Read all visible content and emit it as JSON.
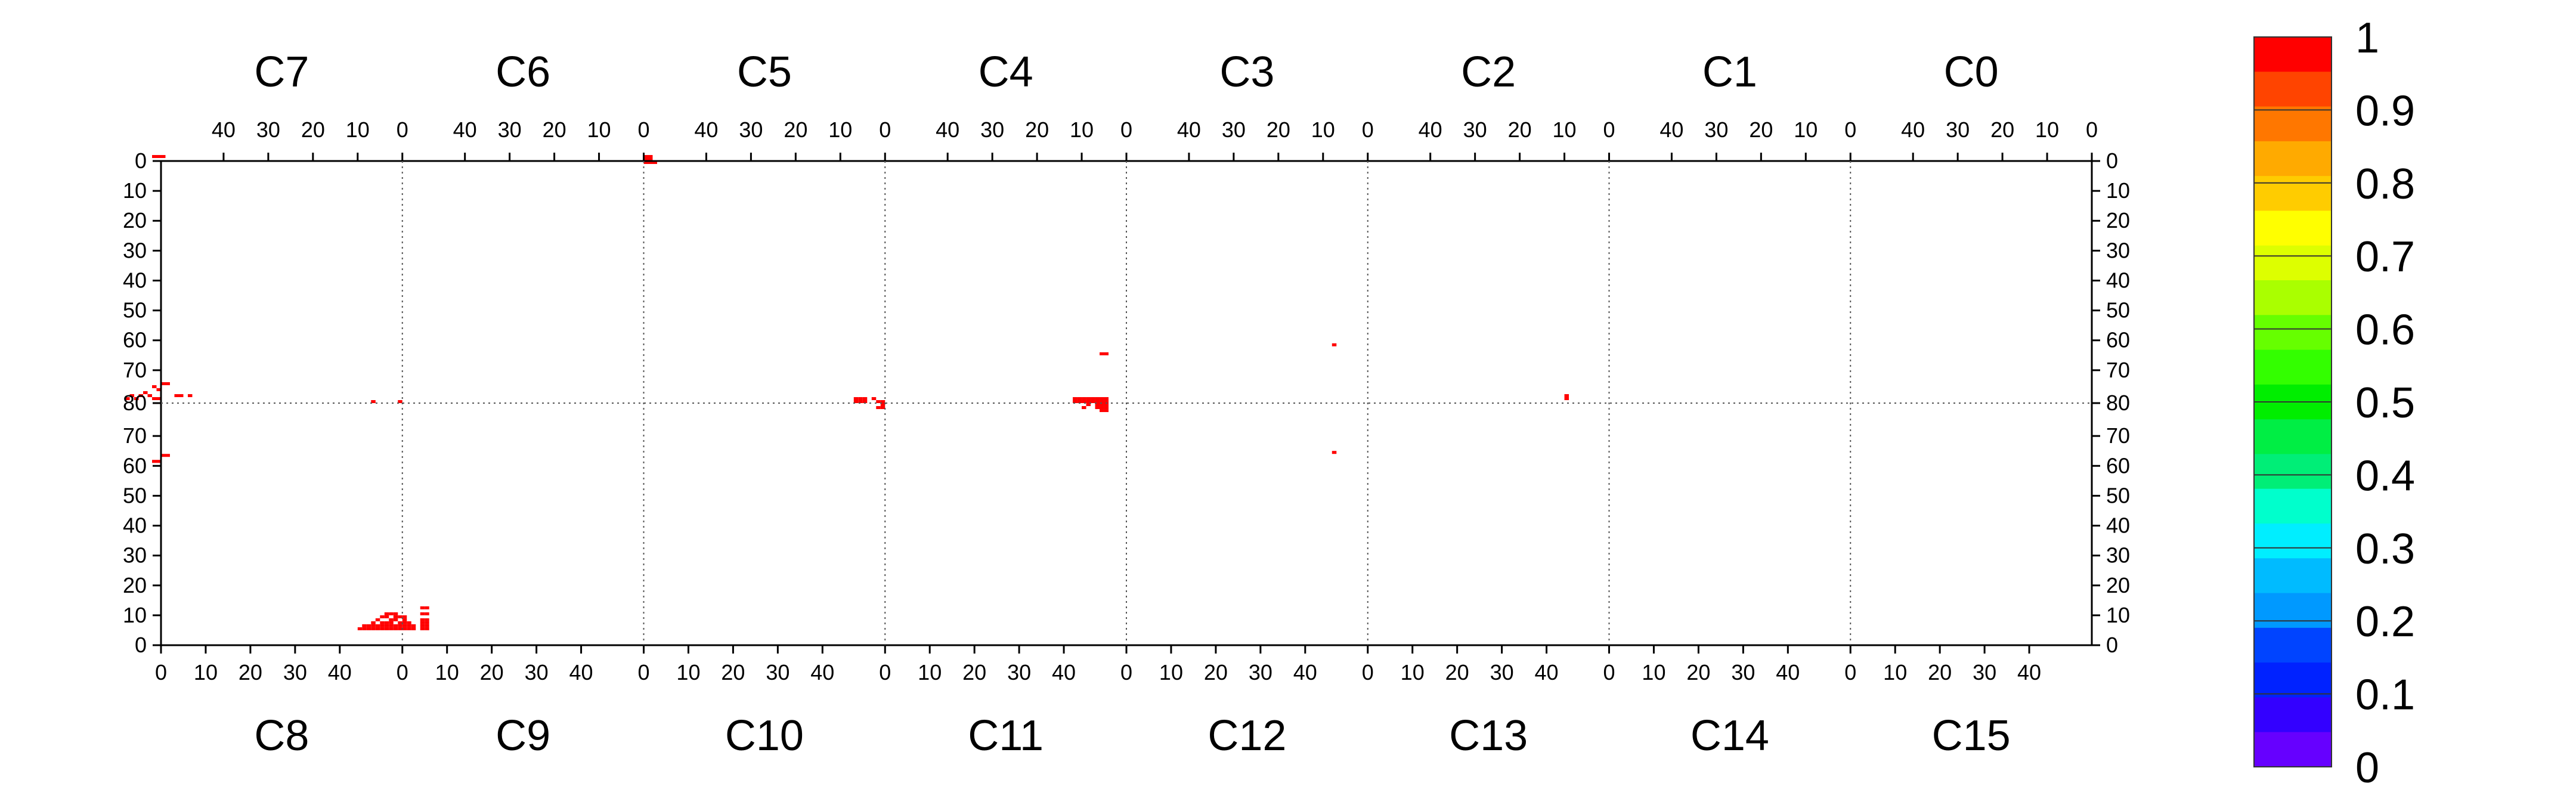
{
  "chart_data": {
    "type": "heatmap",
    "top_panels": [
      "C7",
      "C6",
      "C5",
      "C4",
      "C3",
      "C2",
      "C1",
      "C0"
    ],
    "bottom_panels": [
      "C8",
      "C9",
      "C10",
      "C11",
      "C12",
      "C13",
      "C14",
      "C15"
    ],
    "top_x_ticks": [
      "40",
      "30",
      "20",
      "10",
      "0"
    ],
    "bottom_x_ticks": [
      "0",
      "10",
      "20",
      "30",
      "40"
    ],
    "y_ticks_top_half": [
      "0",
      "10",
      "20",
      "30",
      "40",
      "50",
      "60",
      "70"
    ],
    "y_tick_center": "80",
    "y_ticks_bottom_half": [
      "70",
      "60",
      "50",
      "40",
      "30",
      "20",
      "10",
      "0"
    ],
    "colorbar": {
      "min": 0,
      "max": 1,
      "tick_labels": [
        "1",
        "0.9",
        "0.8",
        "0.7",
        "0.6",
        "0.5",
        "0.4",
        "0.3",
        "0.2",
        "0.1",
        "0"
      ],
      "colors": [
        "#6600ff",
        "#3300ff",
        "#0022ff",
        "#0044ff",
        "#0099ff",
        "#00bbff",
        "#00eeff",
        "#00ffcc",
        "#00ee77",
        "#00ee44",
        "#00ee00",
        "#33ff00",
        "#66ff00",
        "#aaff00",
        "#ddff00",
        "#ffff00",
        "#ffcc00",
        "#ffaa00",
        "#ff7700",
        "#ff4400",
        "#ff0000"
      ]
    },
    "hits": [
      {
        "cell": [
          -1.5,
          -1.5
        ],
        "value": 1
      },
      {
        "cell": [
          -0.5,
          -1.5
        ],
        "value": 1
      },
      {
        "cell": [
          0.5,
          -1.5
        ],
        "value": 1
      },
      {
        "cell": [
          -1.5,
          75.5
        ],
        "value": 1
      },
      {
        "cell": [
          -0.5,
          76.5
        ],
        "value": 1
      },
      {
        "cell": [
          0.5,
          74.5
        ],
        "value": 1
      },
      {
        "cell": [
          1.5,
          74.5
        ],
        "value": 1
      },
      {
        "cell": [
          -3.5,
          77.5
        ],
        "value": 1
      },
      {
        "cell": [
          -4.5,
          78.5
        ],
        "value": 1
      },
      {
        "cell": [
          -5.5,
          79.5
        ],
        "value": 1
      },
      {
        "cell": [
          -6.5,
          78.5
        ],
        "value": 1
      },
      {
        "cell": [
          -7.5,
          79.5
        ],
        "value": 1
      },
      {
        "cell": [
          -2.5,
          78.5
        ],
        "value": 1
      },
      {
        "cell": [
          -1.5,
          79.5
        ],
        "value": 1
      },
      {
        "cell": [
          -0.5,
          79.5
        ],
        "value": 1
      },
      {
        "cell": [
          3.5,
          78.5
        ],
        "value": 1
      },
      {
        "cell": [
          4.5,
          78.5
        ],
        "value": 1
      },
      {
        "cell": [
          6.5,
          78.5
        ],
        "value": 1
      },
      {
        "cell": [
          -0.5,
          100.5
        ],
        "value": 1
      },
      {
        "cell": [
          -1.5,
          100.5
        ],
        "value": 1
      },
      {
        "cell": [
          0.5,
          98.5
        ],
        "value": 1
      },
      {
        "cell": [
          1.5,
          98.5
        ],
        "value": 1
      },
      {
        "cell": [
          47.5,
          80.5
        ],
        "value": 1
      },
      {
        "cell": [
          53.5,
          80.5
        ],
        "value": 1
      },
      {
        "cell": [
          53.5,
          155.5
        ],
        "value": 1
      },
      {
        "cell": [
          52.5,
          155.5
        ],
        "value": 1
      },
      {
        "cell": [
          52.5,
          153.5
        ],
        "value": 1
      },
      {
        "cell": [
          51.5,
          153.5
        ],
        "value": 1
      },
      {
        "cell": [
          51.5,
          154.5
        ],
        "value": 1
      },
      {
        "cell": [
          50.5,
          154.5
        ],
        "value": 1
      },
      {
        "cell": [
          49.5,
          154.5
        ],
        "value": 1
      },
      {
        "cell": [
          49.5,
          155.5
        ],
        "value": 1
      },
      {
        "cell": [
          48.5,
          155.5
        ],
        "value": 1
      },
      {
        "cell": [
          48.5,
          156.5
        ],
        "value": 1
      },
      {
        "cell": [
          47.5,
          156.5
        ],
        "value": 1
      },
      {
        "cell": [
          49.5,
          152.5
        ],
        "value": 1
      },
      {
        "cell": [
          50.5,
          151.5
        ],
        "value": 1
      },
      {
        "cell": [
          50.5,
          152.5
        ],
        "value": 1
      },
      {
        "cell": [
          51.5,
          151.5
        ],
        "value": 1
      },
      {
        "cell": [
          52.5,
          152.5
        ],
        "value": 1
      },
      {
        "cell": [
          47.5,
          155.5
        ],
        "value": 1
      },
      {
        "cell": [
          47.5,
          154.5
        ],
        "value": 1
      },
      {
        "cell": [
          48.5,
          153.5
        ],
        "value": 1
      },
      {
        "cell": [
          46.5,
          156.5
        ],
        "value": 1
      },
      {
        "cell": [
          45.5,
          156.5
        ],
        "value": 1
      },
      {
        "cell": [
          44.5,
          156.5
        ],
        "value": 1
      },
      {
        "cell": [
          45.5,
          155.5
        ],
        "value": 1
      },
      {
        "cell": [
          46.5,
          155.5
        ],
        "value": 1
      },
      {
        "cell": [
          54.5,
          154.5
        ],
        "value": 1
      },
      {
        "cell": [
          55.5,
          155.5
        ],
        "value": 1
      },
      {
        "cell": [
          55.5,
          156.5
        ],
        "value": 1
      },
      {
        "cell": [
          54.5,
          156.5
        ],
        "value": 1
      },
      {
        "cell": [
          53.5,
          156.5
        ],
        "value": 1
      },
      {
        "cell": [
          52.5,
          156.5
        ],
        "value": 1
      },
      {
        "cell": [
          51.5,
          156.5
        ],
        "value": 1
      },
      {
        "cell": [
          50.5,
          156.5
        ],
        "value": 1
      },
      {
        "cell": [
          49.5,
          156.5
        ],
        "value": 1
      },
      {
        "cell": [
          50.5,
          155.5
        ],
        "value": 1
      },
      {
        "cell": [
          51.5,
          155.5
        ],
        "value": 1
      },
      {
        "cell": [
          54.5,
          155.5
        ],
        "value": 1
      },
      {
        "cell": [
          53.5,
          154.5
        ],
        "value": 1
      },
      {
        "cell": [
          54.5,
          153.5
        ],
        "value": 1
      },
      {
        "cell": [
          55.5,
          154.5
        ],
        "value": 1
      },
      {
        "cell": [
          56.5,
          155.5
        ],
        "value": 1
      },
      {
        "cell": [
          56.5,
          156.5
        ],
        "value": 1
      },
      {
        "cell": [
          54.5,
          152.5
        ],
        "value": 1
      },
      {
        "cell": [
          53.5,
          152.5
        ],
        "value": 1
      },
      {
        "cell": [
          52.5,
          151.5
        ],
        "value": 1
      },
      {
        "cell": [
          59.5,
          151.5
        ],
        "value": 1
      },
      {
        "cell": [
          58.5,
          151.5
        ],
        "value": 1
      },
      {
        "cell": [
          59.5,
          153.5
        ],
        "value": 1
      },
      {
        "cell": [
          58.5,
          153.5
        ],
        "value": 1
      },
      {
        "cell": [
          58.5,
          154.5
        ],
        "value": 1
      },
      {
        "cell": [
          59.5,
          154.5
        ],
        "value": 1
      },
      {
        "cell": [
          59.5,
          155.5
        ],
        "value": 1
      },
      {
        "cell": [
          58.5,
          155.5
        ],
        "value": 1
      },
      {
        "cell": [
          58.5,
          156.5
        ],
        "value": 1
      },
      {
        "cell": [
          59.5,
          156.5
        ],
        "value": 1
      },
      {
        "cell": [
          58.5,
          149.5
        ],
        "value": 1
      },
      {
        "cell": [
          59.5,
          149.5
        ],
        "value": 1
      },
      {
        "cell": [
          108.5,
          -1.5
        ],
        "value": 1
      },
      {
        "cell": [
          109.5,
          -1.5
        ],
        "value": 1
      },
      {
        "cell": [
          108.5,
          -0.5
        ],
        "value": 1
      },
      {
        "cell": [
          109.5,
          -0.5
        ],
        "value": 1
      },
      {
        "cell": [
          108.5,
          0.5
        ],
        "value": 1
      },
      {
        "cell": [
          109.5,
          0.5
        ],
        "value": 1
      },
      {
        "cell": [
          110.5,
          0.5
        ],
        "value": 1
      },
      {
        "cell": [
          155.5,
          79.5
        ],
        "value": 1
      },
      {
        "cell": [
          156.5,
          79.5
        ],
        "value": 1
      },
      {
        "cell": [
          157.5,
          79.5
        ],
        "value": 1
      },
      {
        "cell": [
          155.5,
          80.5
        ],
        "value": 1
      },
      {
        "cell": [
          156.5,
          80.5
        ],
        "value": 1
      },
      {
        "cell": [
          157.5,
          80.5
        ],
        "value": 1
      },
      {
        "cell": [
          159.5,
          79.5
        ],
        "value": 1
      },
      {
        "cell": [
          160.5,
          80.5
        ],
        "value": 1
      },
      {
        "cell": [
          161.5,
          80.5
        ],
        "value": 1
      },
      {
        "cell": [
          161.5,
          81.5
        ],
        "value": 1
      },
      {
        "cell": [
          160.5,
          82.5
        ],
        "value": 1
      },
      {
        "cell": [
          161.5,
          82.5
        ],
        "value": 1
      },
      {
        "cell": [
          210.5,
          64.5
        ],
        "value": 1
      },
      {
        "cell": [
          211.5,
          64.5
        ],
        "value": 1
      },
      {
        "cell": [
          204.5,
          79.5
        ],
        "value": 1
      },
      {
        "cell": [
          205.5,
          79.5
        ],
        "value": 1
      },
      {
        "cell": [
          206.5,
          79.5
        ],
        "value": 1
      },
      {
        "cell": [
          207.5,
          79.5
        ],
        "value": 1
      },
      {
        "cell": [
          208.5,
          79.5
        ],
        "value": 1
      },
      {
        "cell": [
          209.5,
          79.5
        ],
        "value": 1
      },
      {
        "cell": [
          210.5,
          79.5
        ],
        "value": 1
      },
      {
        "cell": [
          211.5,
          79.5
        ],
        "value": 1
      },
      {
        "cell": [
          204.5,
          80.5
        ],
        "value": 1
      },
      {
        "cell": [
          205.5,
          80.5
        ],
        "value": 1
      },
      {
        "cell": [
          206.5,
          80.5
        ],
        "value": 1
      },
      {
        "cell": [
          207.5,
          80.5
        ],
        "value": 1
      },
      {
        "cell": [
          208.5,
          80.5
        ],
        "value": 1
      },
      {
        "cell": [
          209.5,
          80.5
        ],
        "value": 1
      },
      {
        "cell": [
          210.5,
          80.5
        ],
        "value": 1
      },
      {
        "cell": [
          211.5,
          80.5
        ],
        "value": 1
      },
      {
        "cell": [
          207.5,
          81.5
        ],
        "value": 1
      },
      {
        "cell": [
          209.5,
          81.5
        ],
        "value": 1
      },
      {
        "cell": [
          210.5,
          81.5
        ],
        "value": 1
      },
      {
        "cell": [
          211.5,
          81.5
        ],
        "value": 1
      },
      {
        "cell": [
          206.5,
          82.5
        ],
        "value": 1
      },
      {
        "cell": [
          209.5,
          82.5
        ],
        "value": 1
      },
      {
        "cell": [
          210.5,
          82.5
        ],
        "value": 1
      },
      {
        "cell": [
          211.5,
          82.5
        ],
        "value": 1
      },
      {
        "cell": [
          210.5,
          83.5
        ],
        "value": 1
      },
      {
        "cell": [
          211.5,
          83.5
        ],
        "value": 1
      },
      {
        "cell": [
          262.5,
          61.5
        ],
        "value": 1
      },
      {
        "cell": [
          262.5,
          97.5
        ],
        "value": 1
      },
      {
        "cell": [
          314.5,
          78.5
        ],
        "value": 1
      },
      {
        "cell": [
          314.5,
          79.5
        ],
        "value": 1
      }
    ]
  }
}
